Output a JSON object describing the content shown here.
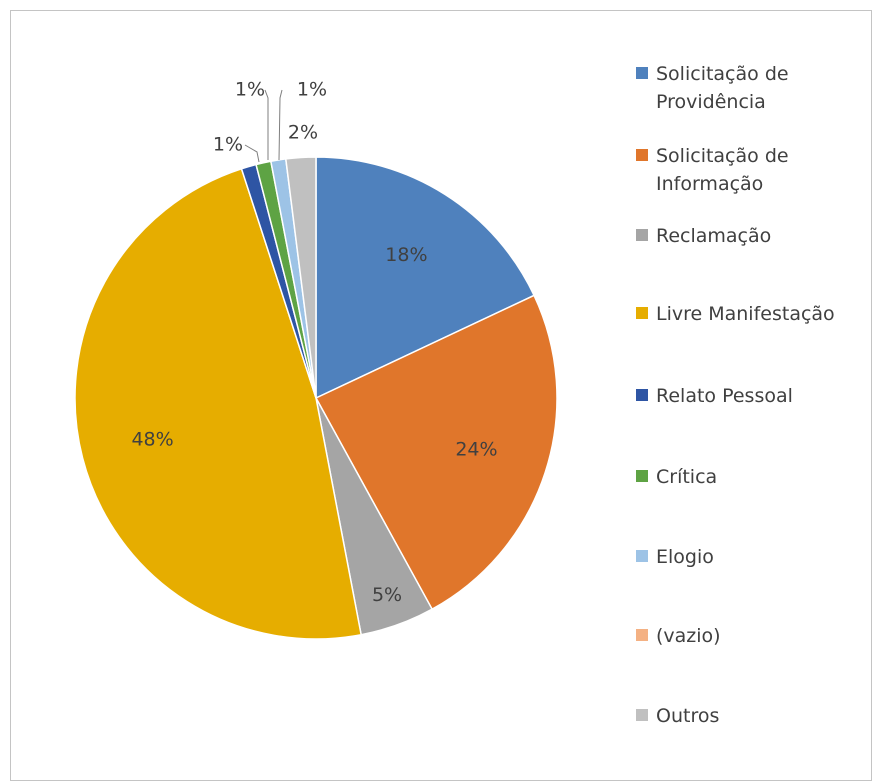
{
  "chart_data": {
    "type": "pie",
    "title": "",
    "categories": [
      "Solicitação de Providência",
      "Solicitação de Informação",
      "Reclamação",
      "Livre Manifestação",
      "Relato Pessoal",
      "Crítica",
      "Elogio",
      "(vazio)",
      "Outros"
    ],
    "legend_labels": [
      "Solicitação de\nProvidência",
      "Solicitação de\nInformação",
      "Reclamação",
      "Livre Manifestação",
      "Relato Pessoal",
      "Crítica",
      "Elogio",
      "(vazio)",
      "Outros"
    ],
    "values": [
      18,
      24,
      5,
      48,
      1,
      1,
      1,
      0,
      2
    ],
    "data_labels": [
      "18%",
      "24%",
      "5%",
      "48%",
      "1%",
      "1%",
      "1%",
      "",
      "2%"
    ],
    "colors": [
      "#4f81bd",
      "#e0762b",
      "#a5a5a5",
      "#e6ad00",
      "#2e55a4",
      "#5ea344",
      "#9dc3e6",
      "#f4b183",
      "#c0c0c0"
    ],
    "legend_position": "right"
  }
}
